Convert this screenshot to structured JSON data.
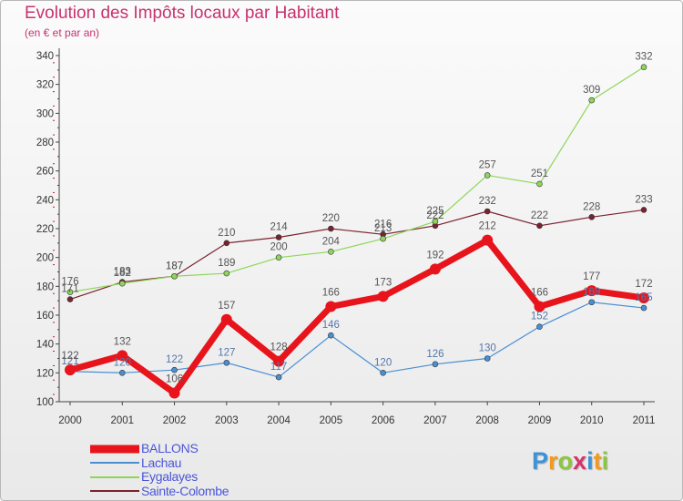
{
  "title": "Evolution des Impôts locaux par Habitant",
  "subtitle": "(en € et par an)",
  "logo": {
    "letters": [
      "P",
      "r",
      "o",
      "x",
      "i",
      "t",
      "i"
    ],
    "colors": [
      "#3d93d6",
      "#f39a1e",
      "#8cc641",
      "#d6336c",
      "#3d93d6",
      "#f39a1e",
      "#8cc641"
    ]
  },
  "chart_data": {
    "type": "line",
    "title": "Evolution des Impôts locaux par Habitant",
    "subtitle": "(en € et par an)",
    "xlabel": "",
    "ylabel": "",
    "x": [
      "2000",
      "2001",
      "2002",
      "2003",
      "2004",
      "2005",
      "2006",
      "2007",
      "2008",
      "2009",
      "2010",
      "2011"
    ],
    "ylim": [
      100,
      340
    ],
    "yticks": [
      "100",
      "120",
      "140",
      "160",
      "180",
      "200",
      "220",
      "240",
      "260",
      "280",
      "300",
      "320",
      "340"
    ],
    "grid": false,
    "legend_position": "bottom-left",
    "series": [
      {
        "name": "BALLONS",
        "color": "#e8141c",
        "values": [
          122,
          132,
          106,
          157,
          128,
          166,
          173,
          192,
          212,
          166,
          177,
          172
        ],
        "labels": [
          "122",
          "132",
          "106",
          "157",
          "128",
          "166",
          "173",
          "192",
          "212",
          "166",
          "177",
          "172"
        ]
      },
      {
        "name": "Lachau",
        "color": "#4a8fd2",
        "values": [
          121,
          120,
          122,
          127,
          117,
          146,
          120,
          126,
          130,
          152,
          169,
          165
        ],
        "labels": [
          "121",
          "120",
          "122",
          "127",
          "117",
          "146",
          "120",
          "126",
          "130",
          "152",
          "169",
          "165"
        ]
      },
      {
        "name": "Eygalayes",
        "color": "#8ed65a",
        "values": [
          176,
          182,
          187,
          189,
          200,
          204,
          213,
          225,
          257,
          251,
          309,
          332
        ],
        "labels": [
          "176",
          "182",
          "187",
          "189",
          "200",
          "204",
          "213",
          "225",
          "257",
          "251",
          "309",
          "332"
        ]
      },
      {
        "name": "Sainte-Colombe",
        "color": "#7a2230",
        "values": [
          171,
          183,
          187,
          210,
          214,
          220,
          216,
          222,
          232,
          222,
          228,
          233
        ],
        "labels": [
          "171",
          "183",
          "187",
          "210",
          "214",
          "220",
          "216",
          "222",
          "232",
          "222",
          "228",
          "233"
        ]
      }
    ]
  }
}
